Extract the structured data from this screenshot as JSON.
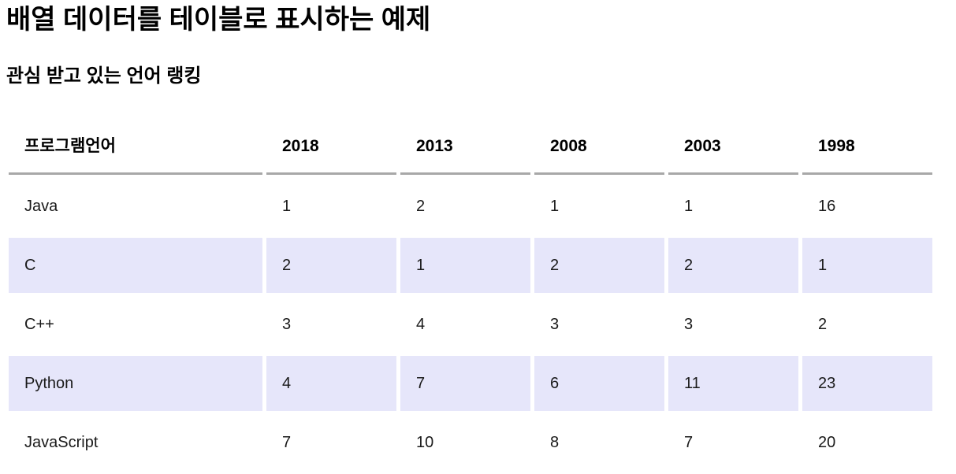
{
  "page": {
    "title": "배열 데이터를 테이블로 표시하는 예제",
    "subtitle": "관심 받고 있는 언어 랭킹"
  },
  "theme": {
    "stripe_color": "#e6e6fa",
    "header_border_color": "#a8a8a8",
    "text_color": "#1a1a1a",
    "heading_color": "#000000",
    "background": "#ffffff"
  },
  "table": {
    "columns": [
      "프로그램언어",
      "2018",
      "2013",
      "2008",
      "2003",
      "1998"
    ],
    "rows": [
      {
        "name": "Java",
        "values": [
          1,
          2,
          1,
          1,
          16
        ]
      },
      {
        "name": "C",
        "values": [
          2,
          1,
          2,
          2,
          1
        ]
      },
      {
        "name": "C++",
        "values": [
          3,
          4,
          3,
          3,
          2
        ]
      },
      {
        "name": "Python",
        "values": [
          4,
          7,
          6,
          11,
          23
        ]
      },
      {
        "name": "JavaScript",
        "values": [
          7,
          10,
          8,
          7,
          20
        ]
      }
    ]
  }
}
